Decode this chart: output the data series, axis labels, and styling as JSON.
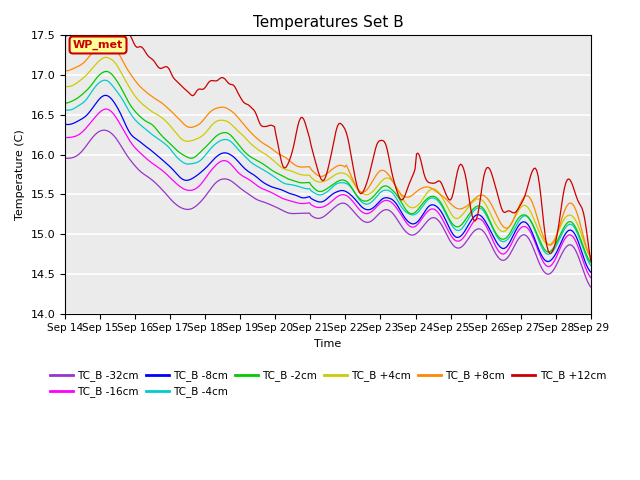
{
  "title": "Temperatures Set B",
  "xlabel": "Time",
  "ylabel": "Temperature (C)",
  "ylim": [
    14.0,
    17.5
  ],
  "x_tick_labels": [
    "Sep 14",
    "Sep 15",
    "Sep 16",
    "Sep 17",
    "Sep 18",
    "Sep 19",
    "Sep 20",
    "Sep 21",
    "Sep 22",
    "Sep 23",
    "Sep 24",
    "Sep 25",
    "Sep 26",
    "Sep 27",
    "Sep 28",
    "Sep 29"
  ],
  "series_colors": {
    "TC_B -32cm": "#9933CC",
    "TC_B -16cm": "#FF00FF",
    "TC_B -8cm": "#0000FF",
    "TC_B -4cm": "#00CCCC",
    "TC_B -2cm": "#00CC00",
    "TC_B +4cm": "#CCCC00",
    "TC_B +8cm": "#FF8800",
    "TC_B +12cm": "#CC0000"
  },
  "annotation_text": "WP_met",
  "annotation_color": "#CC0000",
  "annotation_bg": "#FFFF99",
  "plot_bg": "#EBEBEB",
  "legend_ncol1": 6,
  "legend_ncol2": 2
}
